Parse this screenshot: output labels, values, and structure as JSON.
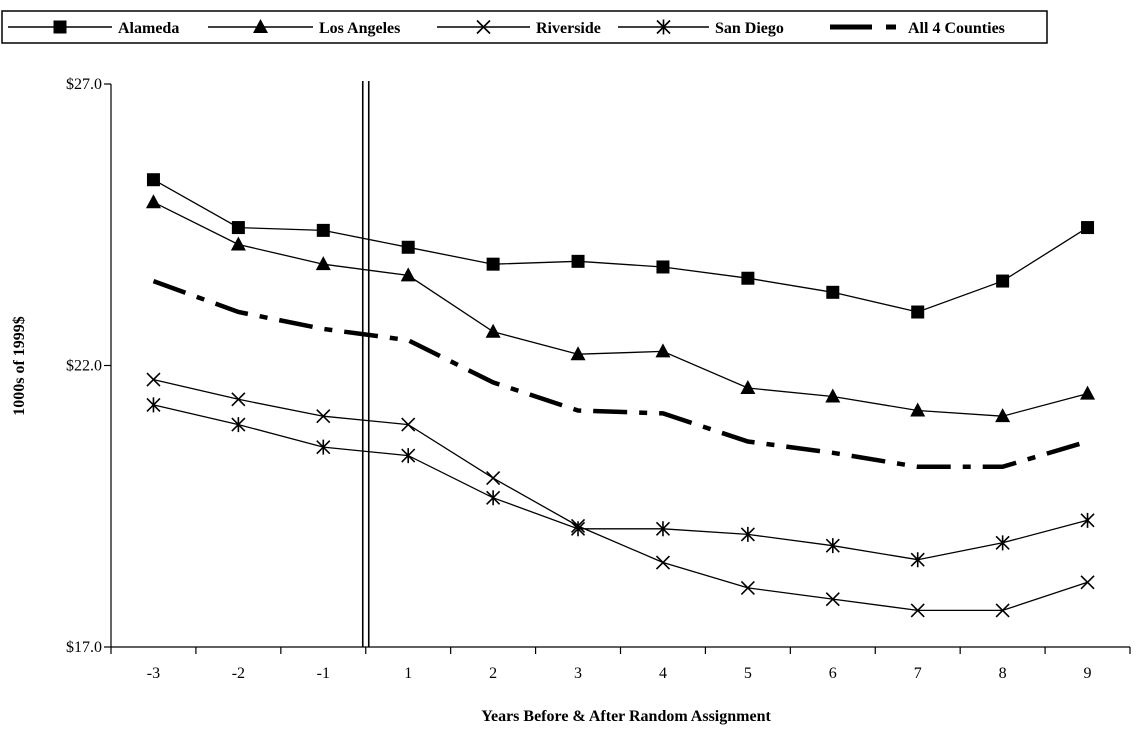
{
  "chart_data": {
    "type": "line",
    "title": "",
    "xlabel": "Years Before & After Random Assignment",
    "ylabel": "1000s of 1999$",
    "categories": [
      "-3",
      "-2",
      "-1",
      "1",
      "2",
      "3",
      "4",
      "5",
      "6",
      "7",
      "8",
      "9"
    ],
    "ylim": [
      17.0,
      27.0
    ],
    "yticks": [
      17.0,
      22.0,
      27.0
    ],
    "ytick_labels": [
      "$17.0",
      "$22.0",
      "$27.0"
    ],
    "grid": false,
    "legend_position": "top",
    "random_assignment_marker": "between -1 and 1",
    "series": [
      {
        "name": "Alameda",
        "marker": "square",
        "style": "solid",
        "color": "#000000",
        "values": [
          25.3,
          24.45,
          24.4,
          24.1,
          23.8,
          23.85,
          23.75,
          23.55,
          23.3,
          22.95,
          23.5,
          24.45
        ]
      },
      {
        "name": "Los Angeles",
        "marker": "triangle",
        "style": "solid",
        "color": "#000000",
        "values": [
          24.9,
          24.15,
          23.8,
          23.6,
          22.6,
          22.2,
          22.25,
          21.6,
          21.45,
          21.2,
          21.1,
          21.5
        ]
      },
      {
        "name": "Riverside",
        "marker": "x",
        "style": "solid",
        "color": "#000000",
        "values": [
          21.75,
          21.4,
          21.1,
          20.95,
          20.0,
          19.15,
          18.5,
          18.05,
          17.85,
          17.65,
          17.65,
          18.15
        ]
      },
      {
        "name": "San Diego",
        "marker": "asterisk",
        "style": "solid",
        "color": "#000000",
        "values": [
          21.3,
          20.95,
          20.55,
          20.4,
          19.65,
          19.1,
          19.1,
          19.0,
          18.8,
          18.55,
          18.85,
          19.25
        ]
      },
      {
        "name": "All 4 Counties",
        "marker": "none",
        "style": "dash-dot-thick",
        "color": "#000000",
        "values": [
          23.5,
          22.95,
          22.65,
          22.45,
          21.7,
          21.2,
          21.15,
          20.65,
          20.45,
          20.2,
          20.2,
          20.65
        ]
      }
    ]
  }
}
